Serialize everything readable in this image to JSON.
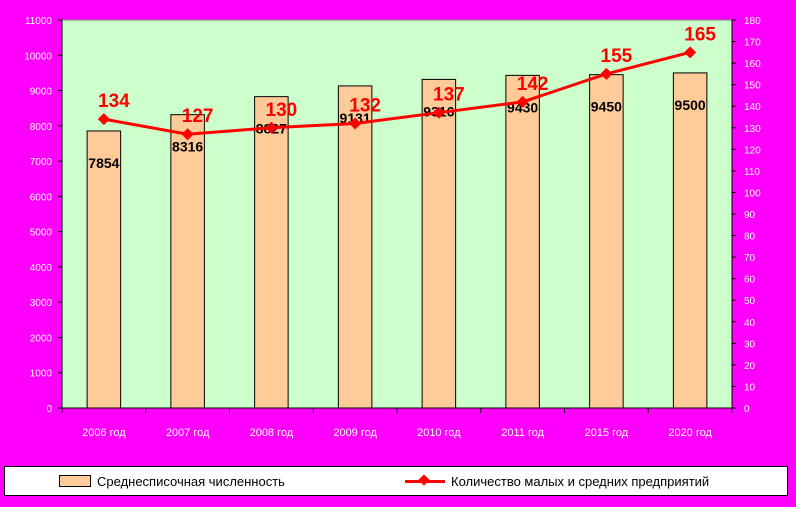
{
  "chart_data": {
    "type": "bar",
    "categories": [
      "2006 год",
      "2007 год",
      "2008 год",
      "2009 год",
      "2010 год",
      "2011 год",
      "2015 год",
      "2020 год"
    ],
    "series": [
      {
        "name": "Среднесписочная численность",
        "type": "bar",
        "axis": "left",
        "values": [
          7854,
          8316,
          8827,
          9131,
          9316,
          9430,
          9450,
          9500
        ],
        "labels": [
          "7854",
          "8316",
          "8827",
          "9131",
          "9316",
          "9430",
          "9450",
          "9500"
        ]
      },
      {
        "name": "Количество малых и средних предприятий",
        "type": "line",
        "axis": "right",
        "values": [
          134,
          127,
          130,
          132,
          137,
          142,
          155,
          165
        ],
        "labels": [
          "134",
          "127",
          "130",
          "132",
          "137",
          "142",
          "155",
          "165"
        ]
      }
    ],
    "left_axis": {
      "ylim": [
        0,
        11000
      ],
      "ticks": [
        "0",
        "1000",
        "2000",
        "3000",
        "4000",
        "5000",
        "6000",
        "7000",
        "8000",
        "9000",
        "10000",
        "11000"
      ]
    },
    "right_axis": {
      "ylim": [
        0,
        180
      ],
      "ticks": [
        "0",
        "10",
        "20",
        "30",
        "40",
        "50",
        "60",
        "70",
        "80",
        "90",
        "100",
        "110",
        "120",
        "130",
        "140",
        "150",
        "160",
        "170",
        "180"
      ]
    },
    "grid": false,
    "legend_position": "bottom",
    "colors": {
      "page_background": "#FF00FF",
      "plot_background": "#CCFFCC",
      "bar_fill": "#FFCC99",
      "line": "#FF0000",
      "line_label": "#FF0000",
      "axis_text": "#FFFFFF"
    }
  }
}
